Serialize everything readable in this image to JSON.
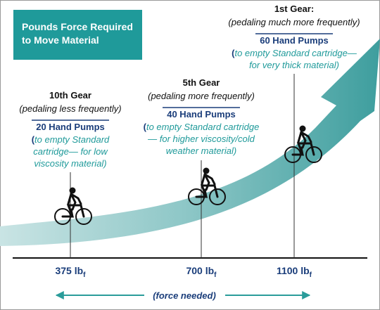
{
  "title_box": {
    "lines": [
      "Pounds Force Required",
      "to Move Material"
    ]
  },
  "gears": [
    {
      "gear": "10th Gear",
      "note": "(pedaling less frequently)",
      "pumps": "20 Hand Pumps",
      "paren": "(",
      "desc": [
        "to empty Standard",
        "cartridge— for low",
        "viscosity material)"
      ],
      "force": "375 lb",
      "force_sub": "f"
    },
    {
      "gear": "5th Gear",
      "note": "(pedaling more frequently)",
      "pumps": "40 Hand Pumps",
      "paren": "(",
      "desc": [
        "to empty Standard cartridge",
        "— for higher viscosity/cold",
        "weather material)"
      ],
      "force": "700 lb",
      "force_sub": "f"
    },
    {
      "gear": "1st Gear:",
      "note": "(pedaling much more frequently)",
      "pumps": "60 Hand Pumps",
      "paren": "(",
      "desc": [
        "to empty Standard cartridge—",
        "for very thick material)"
      ],
      "force": "1100 lb",
      "force_sub": "f"
    }
  ],
  "axis_label": "(force needed)"
}
